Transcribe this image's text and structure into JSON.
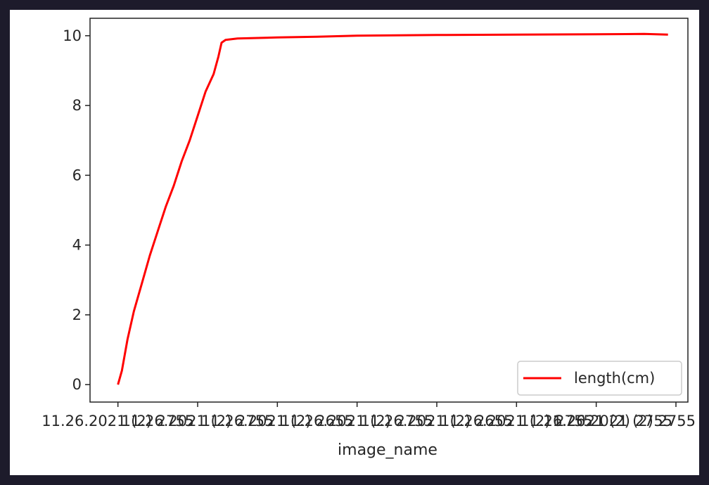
{
  "chart_data": {
    "type": "line",
    "title": "",
    "xlabel": "image_name",
    "ylabel": "",
    "ylim": [
      -0.5,
      10.5
    ],
    "yticks": [
      "0",
      "2",
      "4",
      "6",
      "8",
      "10"
    ],
    "xticks": [
      "11.26.2021 (2) 2755",
      "11.26.2021 (2) 2755",
      "11.26.2021 (2) 2655",
      "11.26.2021 (2) 2755",
      "11.26.2021 (2) 2655",
      "11.26.2021 (2) 2755",
      "11.26.2021 (2) 2755",
      "11.26.2021 (2) 2755"
    ],
    "grid": false,
    "legend_position": "lower-right",
    "series": [
      {
        "name": "length(cm)",
        "color": "#ff0000",
        "points": [
          [
            0,
            0
          ],
          [
            0.05,
            0.4
          ],
          [
            0.12,
            1.3
          ],
          [
            0.2,
            2.1
          ],
          [
            0.3,
            2.9
          ],
          [
            0.4,
            3.7
          ],
          [
            0.5,
            4.4
          ],
          [
            0.6,
            5.1
          ],
          [
            0.7,
            5.7
          ],
          [
            0.8,
            6.4
          ],
          [
            0.9,
            7.0
          ],
          [
            1.0,
            7.7
          ],
          [
            1.1,
            8.4
          ],
          [
            1.2,
            8.9
          ],
          [
            1.26,
            9.4
          ],
          [
            1.3,
            9.8
          ],
          [
            1.35,
            9.88
          ],
          [
            1.5,
            9.92
          ],
          [
            2.0,
            9.95
          ],
          [
            2.5,
            9.97
          ],
          [
            3.0,
            10.0
          ],
          [
            4.0,
            10.02
          ],
          [
            5.0,
            10.03
          ],
          [
            6.0,
            10.04
          ],
          [
            6.6,
            10.05
          ],
          [
            6.9,
            10.03
          ]
        ]
      }
    ]
  }
}
